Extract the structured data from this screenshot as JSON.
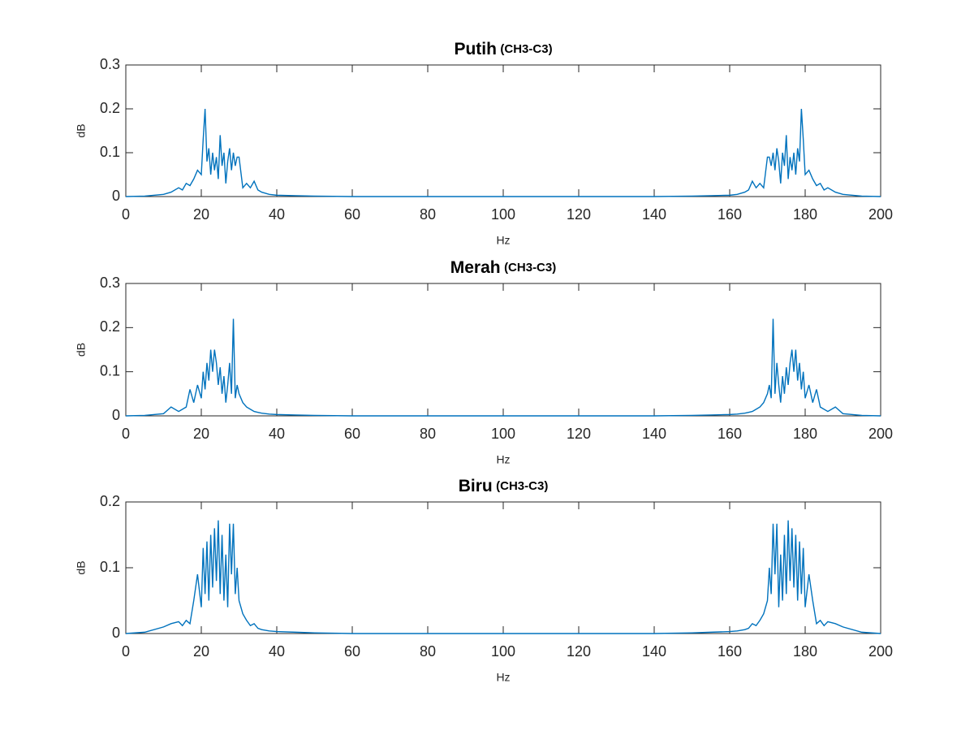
{
  "chart_data": [
    {
      "type": "line",
      "title": "Putih",
      "subtitle": "(CH3-C3)",
      "x_label": "Hz",
      "y_label": "dB",
      "color": "#0072bd",
      "grid": false,
      "xlim": [
        0,
        200
      ],
      "xticks": [
        0,
        20,
        40,
        60,
        80,
        100,
        120,
        140,
        160,
        180,
        200
      ],
      "ylim": [
        0,
        0.3
      ],
      "yticks": [
        0,
        0.1,
        0.2,
        0.3
      ],
      "x": [
        0,
        5,
        10,
        12,
        14,
        15,
        16,
        17,
        18,
        19,
        20,
        20.5,
        21,
        21.5,
        22,
        22.5,
        23,
        23.5,
        24,
        24.5,
        25,
        25.5,
        26,
        26.5,
        27,
        27.5,
        28,
        28.5,
        29,
        29.5,
        30,
        31,
        32,
        33,
        34,
        35,
        36,
        38,
        40,
        45,
        50,
        60,
        80,
        100,
        120,
        140,
        150,
        155,
        160,
        162,
        164,
        165,
        166,
        167,
        168,
        169,
        170,
        170.5,
        171,
        171.5,
        172,
        172.5,
        173,
        173.5,
        174,
        174.5,
        175,
        175.5,
        176,
        176.5,
        177,
        177.5,
        178,
        178.5,
        179,
        179.5,
        180,
        181,
        182,
        183,
        184,
        185,
        186,
        188,
        190,
        195,
        200
      ],
      "values": [
        0,
        0.001,
        0.005,
        0.01,
        0.02,
        0.015,
        0.03,
        0.025,
        0.04,
        0.06,
        0.05,
        0.13,
        0.2,
        0.08,
        0.11,
        0.05,
        0.1,
        0.06,
        0.09,
        0.04,
        0.14,
        0.07,
        0.1,
        0.03,
        0.08,
        0.11,
        0.06,
        0.1,
        0.07,
        0.09,
        0.09,
        0.02,
        0.03,
        0.02,
        0.035,
        0.015,
        0.01,
        0.005,
        0.003,
        0.002,
        0.001,
        0,
        0,
        0,
        0,
        0,
        0.001,
        0.002,
        0.003,
        0.005,
        0.01,
        0.015,
        0.035,
        0.02,
        0.03,
        0.02,
        0.09,
        0.09,
        0.07,
        0.1,
        0.06,
        0.11,
        0.08,
        0.03,
        0.1,
        0.07,
        0.14,
        0.04,
        0.09,
        0.06,
        0.1,
        0.05,
        0.11,
        0.08,
        0.2,
        0.13,
        0.05,
        0.06,
        0.04,
        0.025,
        0.03,
        0.015,
        0.02,
        0.01,
        0.005,
        0.001,
        0
      ]
    },
    {
      "type": "line",
      "title": "Merah",
      "subtitle": "(CH3-C3)",
      "x_label": "Hz",
      "y_label": "dB",
      "color": "#0072bd",
      "grid": false,
      "xlim": [
        0,
        200
      ],
      "xticks": [
        0,
        20,
        40,
        60,
        80,
        100,
        120,
        140,
        160,
        180,
        200
      ],
      "ylim": [
        0,
        0.3
      ],
      "yticks": [
        0,
        0.1,
        0.2,
        0.3
      ],
      "x": [
        0,
        5,
        10,
        12,
        14,
        15,
        16,
        17,
        18,
        19,
        20,
        20.5,
        21,
        21.5,
        22,
        22.5,
        23,
        23.5,
        24,
        24.5,
        25,
        25.5,
        26,
        26.5,
        27,
        27.5,
        28,
        28.5,
        29,
        29.5,
        30,
        31,
        32,
        33,
        34,
        35,
        36,
        38,
        40,
        45,
        50,
        60,
        80,
        100,
        120,
        140,
        150,
        155,
        160,
        162,
        164,
        165,
        166,
        167,
        168,
        169,
        170,
        170.5,
        171,
        171.5,
        172,
        172.5,
        173,
        173.5,
        174,
        174.5,
        175,
        175.5,
        176,
        176.5,
        177,
        177.5,
        178,
        178.5,
        179,
        179.5,
        180,
        181,
        182,
        183,
        184,
        185,
        186,
        188,
        190,
        195,
        200
      ],
      "values": [
        0,
        0.001,
        0.005,
        0.02,
        0.01,
        0.015,
        0.02,
        0.06,
        0.03,
        0.07,
        0.04,
        0.1,
        0.06,
        0.12,
        0.08,
        0.15,
        0.1,
        0.15,
        0.12,
        0.07,
        0.11,
        0.05,
        0.09,
        0.03,
        0.07,
        0.12,
        0.05,
        0.22,
        0.04,
        0.07,
        0.05,
        0.03,
        0.02,
        0.015,
        0.01,
        0.008,
        0.006,
        0.004,
        0.003,
        0.002,
        0.001,
        0,
        0,
        0,
        0,
        0,
        0.001,
        0.002,
        0.003,
        0.004,
        0.006,
        0.008,
        0.01,
        0.015,
        0.02,
        0.03,
        0.05,
        0.07,
        0.04,
        0.22,
        0.05,
        0.12,
        0.07,
        0.03,
        0.09,
        0.05,
        0.11,
        0.07,
        0.12,
        0.15,
        0.1,
        0.15,
        0.08,
        0.12,
        0.06,
        0.1,
        0.04,
        0.07,
        0.03,
        0.06,
        0.02,
        0.015,
        0.01,
        0.02,
        0.005,
        0.001,
        0
      ]
    },
    {
      "type": "line",
      "title": "Biru",
      "subtitle": "(CH3-C3)",
      "x_label": "Hz",
      "y_label": "dB",
      "color": "#0072bd",
      "grid": false,
      "xlim": [
        0,
        200
      ],
      "xticks": [
        0,
        20,
        40,
        60,
        80,
        100,
        120,
        140,
        160,
        180,
        200
      ],
      "ylim": [
        0,
        0.2
      ],
      "yticks": [
        0,
        0.1,
        0.2
      ],
      "x": [
        0,
        5,
        10,
        12,
        14,
        15,
        16,
        17,
        18,
        19,
        20,
        20.5,
        21,
        21.5,
        22,
        22.5,
        23,
        23.5,
        24,
        24.5,
        25,
        25.5,
        26,
        26.5,
        27,
        27.5,
        28,
        28.5,
        29,
        29.5,
        30,
        31,
        32,
        33,
        34,
        35,
        36,
        38,
        40,
        45,
        50,
        60,
        80,
        100,
        120,
        140,
        150,
        155,
        160,
        162,
        164,
        165,
        166,
        167,
        168,
        169,
        170,
        170.5,
        171,
        171.5,
        172,
        172.5,
        173,
        173.5,
        174,
        174.5,
        175,
        175.5,
        176,
        176.5,
        177,
        177.5,
        178,
        178.5,
        179,
        179.5,
        180,
        181,
        182,
        183,
        184,
        185,
        186,
        188,
        190,
        195,
        200
      ],
      "values": [
        0,
        0.002,
        0.01,
        0.015,
        0.018,
        0.012,
        0.02,
        0.015,
        0.05,
        0.09,
        0.04,
        0.13,
        0.06,
        0.14,
        0.05,
        0.15,
        0.07,
        0.16,
        0.08,
        0.172,
        0.06,
        0.15,
        0.05,
        0.12,
        0.04,
        0.167,
        0.09,
        0.167,
        0.06,
        0.1,
        0.05,
        0.03,
        0.02,
        0.012,
        0.015,
        0.008,
        0.006,
        0.004,
        0.003,
        0.002,
        0.001,
        0,
        0,
        0,
        0,
        0,
        0.001,
        0.002,
        0.003,
        0.004,
        0.006,
        0.008,
        0.015,
        0.012,
        0.02,
        0.03,
        0.05,
        0.1,
        0.06,
        0.167,
        0.09,
        0.167,
        0.04,
        0.12,
        0.05,
        0.15,
        0.06,
        0.172,
        0.08,
        0.16,
        0.07,
        0.15,
        0.05,
        0.14,
        0.06,
        0.13,
        0.04,
        0.09,
        0.05,
        0.015,
        0.02,
        0.012,
        0.018,
        0.015,
        0.01,
        0.002,
        0
      ]
    }
  ]
}
